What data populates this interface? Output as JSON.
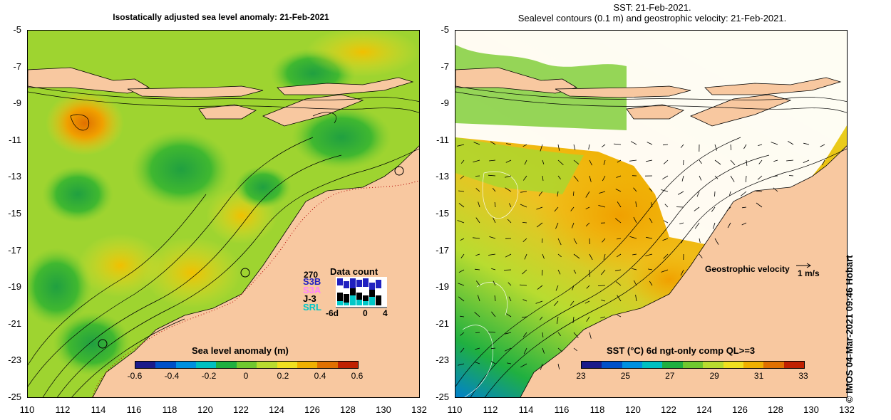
{
  "left_panel": {
    "title": "Isostatically adjusted sea level anomaly: 21-Feb-2021",
    "colorbar": {
      "label": "Sea level anomaly (m)",
      "ticks": [
        "-0.6",
        "-0.4",
        "-0.2",
        "0",
        "0.2",
        "0.4",
        "0.6"
      ],
      "colors": [
        "#1a1a8a",
        "#0050c8",
        "#0090e0",
        "#00c0c0",
        "#20b040",
        "#70c830",
        "#b8dc30",
        "#f0e020",
        "#f0b000",
        "#e07000",
        "#c02000"
      ]
    },
    "data_count": {
      "title": "Data count",
      "value_label": "270",
      "missions": [
        "S3B",
        "S3A",
        "J-3",
        "SRL"
      ],
      "mission_colors": [
        "#2020c0",
        "#ff80ff",
        "#000000",
        "#00c8c8"
      ],
      "axis_ticks": [
        "-6d",
        "0",
        "4"
      ]
    }
  },
  "right_panel": {
    "title_line1": "SST: 21-Feb-2021.",
    "title_line2": "Sealevel contours (0.1 m) and geostrophic velocity: 21-Feb-2021.",
    "colorbar": {
      "label": "SST (°C) 6d ngt-only comp QL>=3",
      "ticks": [
        "23",
        "25",
        "27",
        "29",
        "31",
        "33"
      ],
      "colors": [
        "#1a1a8a",
        "#0050c8",
        "#0090e0",
        "#00c0c0",
        "#20b040",
        "#70c830",
        "#b8dc30",
        "#f0e020",
        "#f0b000",
        "#e07000",
        "#c02000"
      ]
    },
    "geostrophic_label": "Geostrophic velocity",
    "velocity_scale": "1 m/s"
  },
  "axes": {
    "y_ticks": [
      "-5",
      "-7",
      "-9",
      "-11",
      "-13",
      "-15",
      "-17",
      "-19",
      "-21",
      "-23",
      "-25"
    ],
    "x_ticks": [
      "110",
      "112",
      "114",
      "116",
      "118",
      "120",
      "122",
      "124",
      "126",
      "128",
      "130",
      "132"
    ]
  },
  "credit": "© IMOS 04-Mar-2021 09:46 Hobart",
  "colors": {
    "land": "#f8c8a0",
    "coastline": "#000000",
    "no_data": "#ffffff"
  }
}
